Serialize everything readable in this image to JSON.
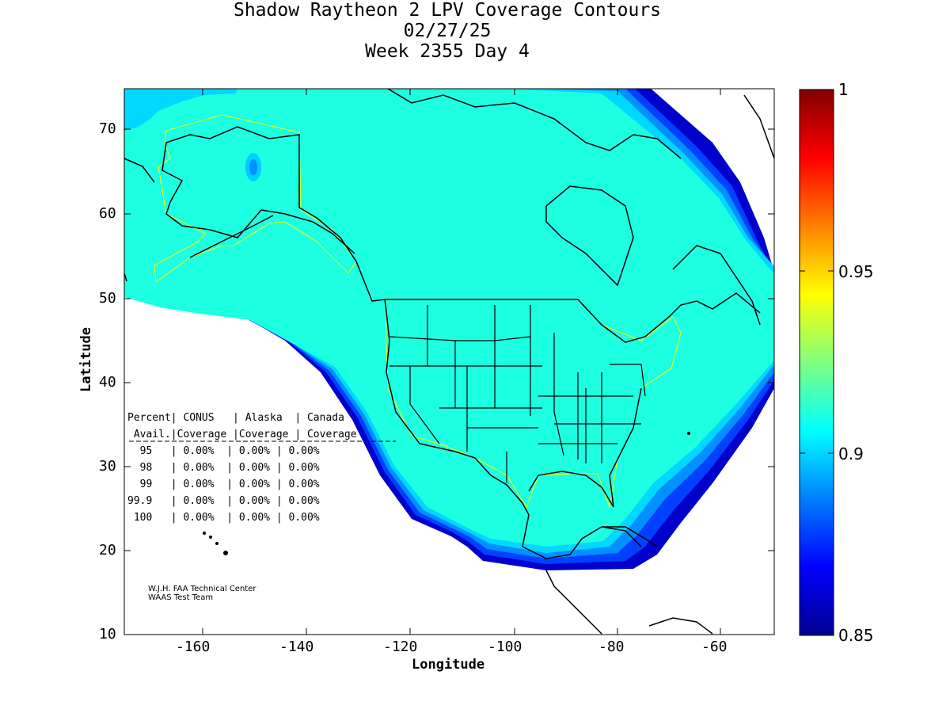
{
  "title": {
    "line1": "Shadow Raytheon 2 LPV Coverage Contours",
    "line2": "02/27/25",
    "line3": "Week 2355 Day 4"
  },
  "axes": {
    "xlabel": "Longitude",
    "ylabel": "Latitude",
    "xticks": [
      "-160",
      "-140",
      "-120",
      "-100",
      "-80",
      "-60"
    ],
    "yticks": [
      "70",
      "60",
      "50",
      "40",
      "30",
      "20",
      "10"
    ]
  },
  "colorbar": {
    "ticks": [
      "1",
      "0.95",
      "0.9",
      "0.85"
    ],
    "min": 0.85,
    "max": 1
  },
  "table": {
    "header1": "Percent| CONUS   | Alaska  | Canada",
    "header2": " Avail.|Coverage |Coverage | Coverage",
    "divider": "--------------------------------------------",
    "rows": [
      "  95   | 0.00%  | 0.00% | 0.00%",
      "  98   | 0.00%  | 0.00% | 0.00%",
      "  99   | 0.00%  | 0.00% | 0.00%",
      "99.9   | 0.00%  | 0.00% | 0.00%",
      " 100   | 0.00%  | 0.00% | 0.00%"
    ]
  },
  "credit": {
    "line1": "W.J.H. FAA Technical Center",
    "line2": "WAAS Test Team"
  },
  "colors": {
    "coverage": "#1cffe0",
    "edge1": "#00d8ff",
    "edge2": "#0090ff",
    "edge3": "#0040ff",
    "edge4": "#0000cc",
    "service_outline": "#ffff00"
  }
}
